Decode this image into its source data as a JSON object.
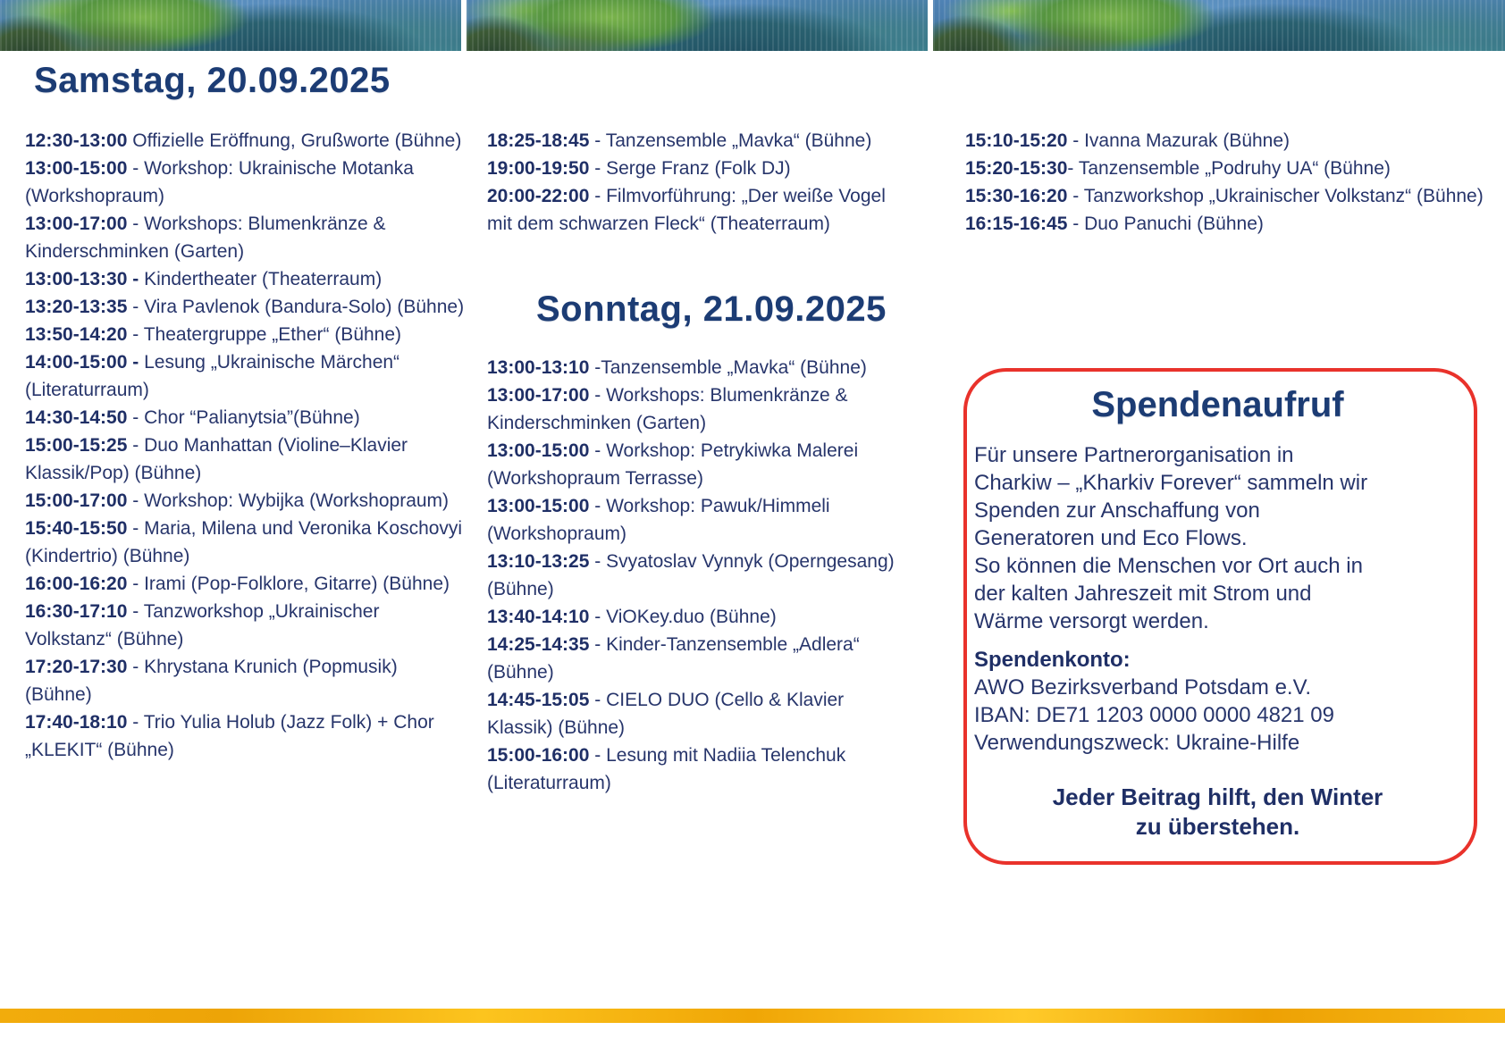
{
  "page": {
    "colors": {
      "heading_blue": "#1c3c74",
      "body_navy": "#27356b",
      "accent_red": "#e9322b",
      "gold": "#f3ac0b"
    }
  },
  "saturday": {
    "title": "Samstag, 20.09.2025",
    "events": [
      {
        "time": "12:30-13:00",
        "text": " Offizielle Eröffnung, Grußworte (Bühne)"
      },
      {
        "time": "13:00-15:00",
        "text": " - Workshop: Ukrainische Motanka (Workshopraum)"
      },
      {
        "time": "13:00-17:00",
        "text": " - Workshops: Blumenkränze & Kinderschminken (Garten)"
      },
      {
        "time": "13:00-13:30 -",
        "text": " Kindertheater (Theaterraum)"
      },
      {
        "time": "13:20-13:35",
        "text": " - Vira Pavlenok (Bandura-Solo) (Bühne)"
      },
      {
        "time": "13:50-14:20",
        "text": " - Theatergruppe „Ether“ (Bühne)"
      },
      {
        "time": "14:00-15:00 -",
        "text": " Lesung „Ukrainische Märchen“ (Literaturraum)"
      },
      {
        "time": "14:30-14:50",
        "text": " - Chor “Palianytsia”(Bühne)"
      },
      {
        "time": "15:00-15:25",
        "text": " - Duo Manhattan (Violine–Klavier Klassik/Pop) (Bühne)"
      },
      {
        "time": "15:00-17:00",
        "text": " - Workshop: Wybijka (Workshopraum)"
      },
      {
        "time": "15:40-15:50",
        "text": " - Maria, Milena und Veronika Koschovyi (Kindertrio) (Bühne)"
      },
      {
        "time": "16:00-16:20",
        "text": " - Irami (Pop-Folklore, Gitarre) (Bühne)"
      },
      {
        "time": "16:30-17:10",
        "text": " - Tanzworkshop „Ukrainischer Volkstanz“ (Bühne)"
      },
      {
        "time": "17:20-17:30",
        "text": " - Khrystana Krunich (Popmusik) (Bühne)"
      },
      {
        "time": "17:40-18:10",
        "text": " - Trio Yulia Holub (Jazz Folk) + Chor „KLEKIT“ (Bühne)"
      }
    ],
    "events_continued": [
      {
        "time": "18:25-18:45",
        "text": " - Tanzensemble „Mavka“ (Bühne)"
      },
      {
        "time": "19:00-19:50",
        "text": " - Serge Franz (Folk DJ)"
      },
      {
        "time": "20:00-22:00",
        "text": " - Filmvorführung: „Der weiße Vogel mit dem schwarzen Fleck“ (Theaterraum)"
      }
    ]
  },
  "sunday": {
    "title": "Sonntag, 21.09.2025",
    "events": [
      {
        "time": "13:00-13:10",
        "text": " -Tanzensemble „Mavka“ (Bühne)"
      },
      {
        "time": "13:00-17:00",
        "text": " - Workshops: Blumenkränze & Kinderschminken (Garten)"
      },
      {
        "time": "13:00-15:00",
        "text": " - Workshop: Petrykiwka Malerei (Workshopraum Terrasse)"
      },
      {
        "time": "13:00-15:00",
        "text": " - Workshop: Pawuk/Himmeli (Workshopraum)"
      },
      {
        "time": "13:10-13:25",
        "text": " - Svyatoslav Vynnyk (Operngesang) (Bühne)"
      },
      {
        "time": "13:40-14:10",
        "text": " - ViOKey.duo (Bühne)"
      },
      {
        "time": "14:25-14:35",
        "text": " - Kinder-Tanzensemble „Adlera“ (Bühne)"
      },
      {
        "time": "14:45-15:05",
        "text": " - CIELO DUO (Cello & Klavier Klassik) (Bühne)"
      },
      {
        "time": "15:00-16:00",
        "text": " - Lesung mit Nadiia Telenchuk (Literaturraum)"
      }
    ],
    "events_continued": [
      {
        "time": "15:10-15:20",
        "text": " - Ivanna Mazurak (Bühne)"
      },
      {
        "time": "15:20-15:30",
        "text": "- Tanzensemble „Podruhy UA“ (Bühne)"
      },
      {
        "time": "15:30-16:20",
        "text": " - Tanzworkshop „Ukrainischer Volkstanz“ (Bühne)"
      },
      {
        "time": "16:15-16:45",
        "text": " - Duo Panuchi  (Bühne)"
      }
    ]
  },
  "donation": {
    "title": "Spendenaufruf",
    "body_lines": [
      "Für unsere Partnerorganisation in",
      "Charkiw – „Kharkiv Forever“ sammeln wir",
      "Spenden zur Anschaffung von",
      "Generatoren und Eco Flows.",
      "So können die Menschen vor Ort auch in",
      "der kalten Jahreszeit mit Strom und",
      "Wärme versorgt werden."
    ],
    "account_label": "Spendenkonto:",
    "account_lines": [
      "AWO Bezirksverband Potsdam e.V.",
      "IBAN: DE71 1203 0000 0000 4821 09",
      "Verwendungszweck: Ukraine-Hilfe"
    ],
    "footer_lines": [
      "Jeder Beitrag hilft, den Winter",
      "zu überstehen."
    ]
  }
}
